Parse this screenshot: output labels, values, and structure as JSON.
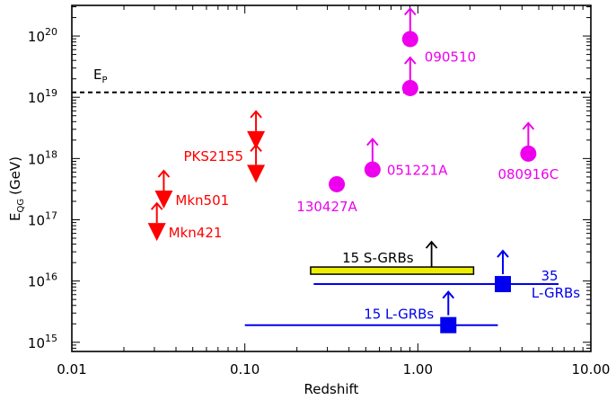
{
  "chart_data": {
    "type": "scatter",
    "xlabel": "Redshift",
    "ylabel_main": "E",
    "ylabel_sub": "QG",
    "ylabel_unit": "(GeV)",
    "xscale": "log",
    "yscale": "log",
    "xlim": [
      0.01,
      10
    ],
    "ylim_exp": [
      14.85,
      20.5
    ],
    "x_ticks": [
      "0.01",
      "0.10",
      "1.00",
      "10.00"
    ],
    "y_tick_exponents": [
      "15",
      "16",
      "17",
      "18",
      "19",
      "20"
    ],
    "y_tick_base": "10",
    "reference_line": {
      "label_main": "E",
      "label_sub": "P",
      "log10_value": 19.08,
      "style": "dashed"
    },
    "colors": {
      "grb": "#ee00ee",
      "blazar": "#ff0000",
      "lgrb": "#0000ee",
      "sgrb": "#000000",
      "sgrb_band": "#eeee00"
    },
    "grb_points": [
      {
        "name": "090510",
        "z": 0.903,
        "log10_e": 19.95,
        "arrow": true,
        "show_label": true
      },
      {
        "name": "090510",
        "z": 0.903,
        "log10_e": 19.15,
        "arrow": true,
        "show_label": false
      },
      {
        "name": "080916C",
        "z": 4.35,
        "log10_e": 18.08,
        "arrow": true,
        "show_label": true
      },
      {
        "name": "051221A",
        "z": 0.547,
        "log10_e": 17.82,
        "arrow": true,
        "show_label": true
      },
      {
        "name": "130427A",
        "z": 0.34,
        "log10_e": 17.58,
        "arrow": false,
        "show_label": true
      }
    ],
    "blazar_points": [
      {
        "name": "PKS2155",
        "z": 0.116,
        "log10_e": 18.3,
        "show_label": true
      },
      {
        "name": "PKS2155",
        "z": 0.116,
        "log10_e": 17.75,
        "show_label": false
      },
      {
        "name": "Mkn501",
        "z": 0.034,
        "log10_e": 17.33,
        "show_label": true
      },
      {
        "name": "Mkn421",
        "z": 0.031,
        "log10_e": 16.8,
        "show_label": true
      }
    ],
    "populations": [
      {
        "label": "15 S-GRBs",
        "z_min": 0.24,
        "z_max": 2.1,
        "z_center": 1.2,
        "log10_e": 16.17,
        "color": "sgrb"
      },
      {
        "label_line1": "35",
        "label_line2": "L-GRBs",
        "z_min": 0.25,
        "z_max": 6.5,
        "z_center": 3.1,
        "log10_e": 15.95,
        "color": "lgrb"
      },
      {
        "label": "15 L-GRBs",
        "z_min": 0.1,
        "z_max": 2.9,
        "z_center": 1.5,
        "log10_e": 15.28,
        "color": "lgrb"
      }
    ]
  }
}
